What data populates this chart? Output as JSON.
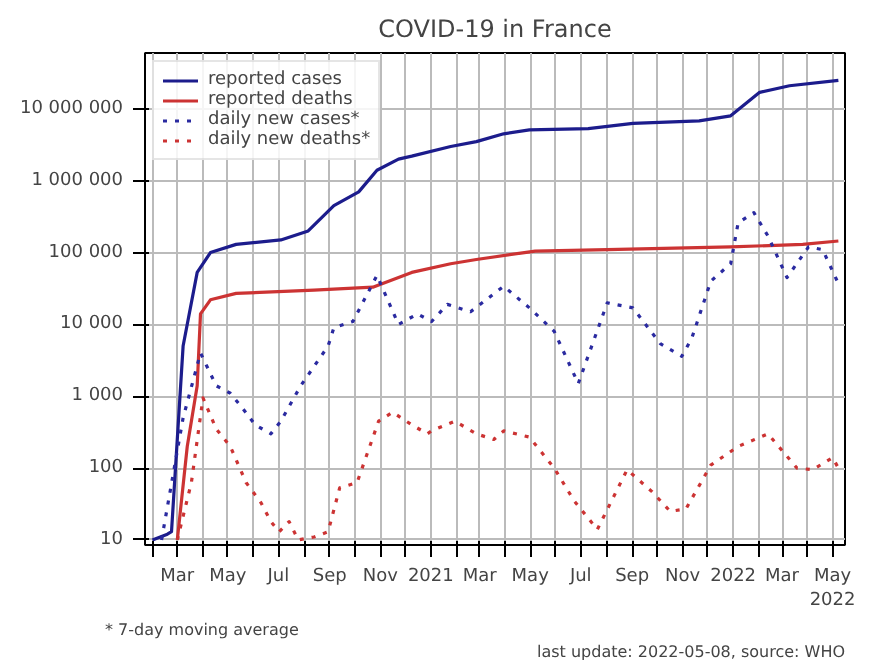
{
  "chart_data": {
    "type": "line",
    "title": "COVID-19 in France",
    "annotations": [
      "* 7-day moving average",
      "last update: 2022-05-08, source: WHO"
    ],
    "log": true,
    "grid": true,
    "legend": "top left",
    "xlim": [
      "2020-01-22",
      "2022-05-16"
    ],
    "xticks": [
      {
        "value": "2020-02-01",
        "label": null
      },
      {
        "value": "2020-03-01",
        "label": "Mar"
      },
      {
        "value": "2020-04-01",
        "label": null
      },
      {
        "value": "2020-05-01",
        "label": "May"
      },
      {
        "value": "2020-06-01",
        "label": null
      },
      {
        "value": "2020-07-01",
        "label": "Jul"
      },
      {
        "value": "2020-08-01",
        "label": null
      },
      {
        "value": "2020-09-01",
        "label": "Sep"
      },
      {
        "value": "2020-10-01",
        "label": null
      },
      {
        "value": "2020-11-01",
        "label": "Nov"
      },
      {
        "value": "2020-12-01",
        "label": null
      },
      {
        "value": "2021-01-01",
        "label": "2021"
      },
      {
        "value": "2021-02-01",
        "label": null
      },
      {
        "value": "2021-03-01",
        "label": "Mar"
      },
      {
        "value": "2021-04-01",
        "label": null
      },
      {
        "value": "2021-05-01",
        "label": "May"
      },
      {
        "value": "2021-06-01",
        "label": null
      },
      {
        "value": "2021-07-01",
        "label": "Jul"
      },
      {
        "value": "2021-08-01",
        "label": null
      },
      {
        "value": "2021-09-01",
        "label": "Sep"
      },
      {
        "value": "2021-10-01",
        "label": null
      },
      {
        "value": "2021-11-01",
        "label": "Nov"
      },
      {
        "value": "2021-12-01",
        "label": null
      },
      {
        "value": "2022-01-01",
        "label": "2022"
      },
      {
        "value": "2022-02-01",
        "label": null
      },
      {
        "value": "2022-03-01",
        "label": "Mar"
      },
      {
        "value": "2022-04-01",
        "label": null
      },
      {
        "value": "2022-05-01",
        "label": "May\n2022"
      }
    ],
    "ylim": [
      8.5,
      60000000
    ],
    "yticks": [
      10,
      100,
      {
        "value": 1000,
        "label": "1 000"
      },
      {
        "value": 10000,
        "label": "10 000"
      },
      {
        "value": 100000,
        "label": "100 000"
      },
      {
        "value": 1000000,
        "label": "1 000 000"
      },
      {
        "value": 10000000,
        "label": "10 000 000"
      }
    ],
    "series": [
      {
        "name": "reported cases",
        "color": "#1c1c8c",
        "line_style": "solid",
        "x": [
          "2020-01-31",
          "2020-02-18",
          "2020-02-23",
          "2020-03-08",
          "2020-03-25",
          "2020-04-10",
          "2020-05-11",
          "2020-07-04",
          "2020-08-06",
          "2020-09-06",
          "2020-10-06",
          "2020-10-28",
          "2020-11-23",
          "2020-12-09",
          "2021-01-25",
          "2021-02-25",
          "2021-03-30",
          "2021-04-30",
          "2021-07-10",
          "2021-09-02",
          "2021-11-21",
          "2021-12-29",
          "2022-02-02",
          "2022-03-10",
          "2022-05-08"
        ],
        "values": [
          10,
          12,
          13,
          5000,
          53000,
          100000,
          130000,
          150000,
          200000,
          450000,
          700000,
          1400000,
          2000000,
          2200000,
          3000000,
          3500000,
          4500000,
          5100000,
          5300000,
          6300000,
          6800000,
          8000000,
          17000000,
          21000000,
          25000000
        ]
      },
      {
        "name": "reported deaths",
        "color": "#cc3333",
        "line_style": "solid",
        "x": [
          "2020-03-01",
          "2020-03-13",
          "2020-03-25",
          "2020-03-29",
          "2020-04-10",
          "2020-05-11",
          "2020-08-13",
          "2020-10-23",
          "2020-12-09",
          "2021-01-25",
          "2021-02-25",
          "2021-05-07",
          "2021-08-02",
          "2021-12-29",
          "2022-03-26",
          "2022-05-08"
        ],
        "values": [
          10,
          200,
          1400,
          14000,
          22000,
          27000,
          30000,
          33000,
          53000,
          70000,
          80000,
          105000,
          110000,
          120000,
          130000,
          145000
        ]
      },
      {
        "name": "daily new cases*",
        "color": "#2a2aa0",
        "line_style": "dotted",
        "x": [
          "2020-02-11",
          "2020-03-08",
          "2020-03-29",
          "2020-04-17",
          "2020-05-04",
          "2020-05-18",
          "2020-06-03",
          "2020-06-22",
          "2020-07-04",
          "2020-07-28",
          "2020-08-30",
          "2020-09-06",
          "2020-09-29",
          "2020-10-28",
          "2020-11-23",
          "2020-12-16",
          "2021-01-02",
          "2021-01-21",
          "2021-02-18",
          "2021-03-30",
          "2021-04-30",
          "2021-05-30",
          "2021-06-28",
          "2021-08-02",
          "2021-09-02",
          "2021-10-05",
          "2021-10-31",
          "2021-11-12",
          "2021-12-05",
          "2021-12-29",
          "2022-01-07",
          "2022-01-26",
          "2022-02-12",
          "2022-03-07",
          "2022-04-02",
          "2022-04-19",
          "2022-05-08"
        ],
        "values": [
          10,
          500,
          4000,
          1400,
          1100,
          700,
          400,
          300,
          450,
          1400,
          5000,
          9000,
          11000,
          48000,
          10000,
          14000,
          11000,
          19000,
          15000,
          34000,
          17000,
          8000,
          1500,
          20000,
          17000,
          5400,
          3600,
          6400,
          40000,
          70000,
          260000,
          360000,
          170000,
          45000,
          120000,
          110000,
          37000
        ]
      },
      {
        "name": "daily new deaths*",
        "color": "#cc3333",
        "line_style": "dotted",
        "x": [
          "2020-03-01",
          "2020-03-18",
          "2020-04-01",
          "2020-04-17",
          "2020-05-04",
          "2020-05-23",
          "2020-06-10",
          "2020-06-22",
          "2020-07-02",
          "2020-07-14",
          "2020-07-25",
          "2020-08-13",
          "2020-08-30",
          "2020-09-13",
          "2020-10-04",
          "2020-10-30",
          "2020-11-16",
          "2020-12-09",
          "2020-12-28",
          "2021-01-02",
          "2021-01-30",
          "2021-02-25",
          "2021-03-18",
          "2021-03-30",
          "2021-04-30",
          "2021-05-30",
          "2021-06-23",
          "2021-07-21",
          "2021-08-26",
          "2021-09-25",
          "2021-10-17",
          "2021-11-05",
          "2021-12-05",
          "2022-01-07",
          "2022-02-12",
          "2022-03-19",
          "2022-04-07",
          "2022-05-01",
          "2022-05-08"
        ],
        "values": [
          10,
          63,
          950,
          350,
          200,
          63,
          33,
          18,
          13,
          18,
          10,
          11,
          13,
          53,
          63,
          450,
          600,
          400,
          300,
          330,
          450,
          300,
          250,
          330,
          270,
          100,
          35,
          14,
          95,
          47,
          25,
          27,
          110,
          200,
          300,
          100,
          95,
          140,
          100
        ]
      }
    ]
  }
}
